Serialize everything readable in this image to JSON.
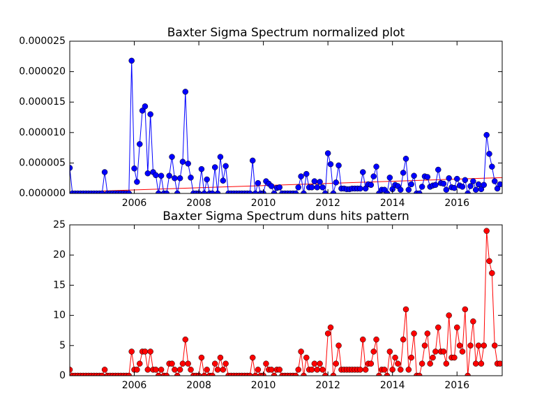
{
  "chart_data": [
    {
      "type": "line",
      "title": "Baxter Sigma Spectrum normalized plot",
      "x": [
        2004,
        2004.083,
        2004.167,
        2004.25,
        2004.333,
        2004.417,
        2004.5,
        2004.583,
        2004.667,
        2004.75,
        2004.833,
        2004.917,
        2005,
        2005.083,
        2005.167,
        2005.25,
        2005.333,
        2005.417,
        2005.5,
        2005.583,
        2005.667,
        2005.75,
        2005.833,
        2005.917,
        2006,
        2006.083,
        2006.167,
        2006.25,
        2006.333,
        2006.417,
        2006.5,
        2006.583,
        2006.667,
        2006.75,
        2006.833,
        2006.917,
        2007,
        2007.083,
        2007.167,
        2007.25,
        2007.333,
        2007.417,
        2007.5,
        2007.583,
        2007.667,
        2007.75,
        2007.833,
        2007.917,
        2008,
        2008.083,
        2008.167,
        2008.25,
        2008.333,
        2008.417,
        2008.5,
        2008.583,
        2008.667,
        2008.75,
        2008.833,
        2008.917,
        2009,
        2009.083,
        2009.167,
        2009.25,
        2009.333,
        2009.417,
        2009.5,
        2009.583,
        2009.667,
        2009.75,
        2009.833,
        2009.917,
        2010,
        2010.083,
        2010.167,
        2010.25,
        2010.333,
        2010.417,
        2010.5,
        2010.583,
        2010.667,
        2010.75,
        2010.833,
        2010.917,
        2011,
        2011.083,
        2011.167,
        2011.25,
        2011.333,
        2011.417,
        2011.5,
        2011.583,
        2011.667,
        2011.75,
        2011.833,
        2011.917,
        2012,
        2012.083,
        2012.167,
        2012.25,
        2012.333,
        2012.417,
        2012.5,
        2012.583,
        2012.667,
        2012.75,
        2012.833,
        2012.917,
        2013,
        2013.083,
        2013.167,
        2013.25,
        2013.333,
        2013.417,
        2013.5,
        2013.583,
        2013.667,
        2013.75,
        2013.833,
        2013.917,
        2014,
        2014.083,
        2014.167,
        2014.25,
        2014.333,
        2014.417,
        2014.5,
        2014.583,
        2014.667,
        2014.75,
        2014.833,
        2014.917,
        2015,
        2015.083,
        2015.167,
        2015.25,
        2015.333,
        2015.417,
        2015.5,
        2015.583,
        2015.667,
        2015.75,
        2015.833,
        2015.917,
        2016,
        2016.083,
        2016.167,
        2016.25,
        2016.333,
        2016.417,
        2016.5,
        2016.583,
        2016.667,
        2016.75,
        2016.833,
        2016.917,
        2017,
        2017.083,
        2017.167,
        2017.25,
        2017.333
      ],
      "series": [
        {
          "color": "#0000ff",
          "values": [
            4.2e-06,
            0,
            0,
            0,
            0,
            0,
            0,
            0,
            0,
            0,
            0,
            0,
            0,
            3.5e-06,
            0,
            0,
            0,
            0,
            0,
            0,
            0,
            0,
            0,
            2.18e-05,
            4.1e-06,
            1.9e-06,
            8.1e-06,
            1.36e-05,
            1.43e-05,
            3.3e-06,
            1.3e-05,
            3.5e-06,
            3e-06,
            0,
            2.9e-06,
            0,
            0,
            2.9e-06,
            6e-06,
            2.5e-06,
            0,
            2.5e-06,
            5.2e-06,
            1.67e-05,
            4.9e-06,
            2.6e-06,
            0,
            0,
            0,
            4e-06,
            0,
            2.3e-06,
            0,
            0,
            4.3e-06,
            0,
            6e-06,
            2.1e-06,
            4.5e-06,
            0,
            0,
            0,
            0,
            0,
            0,
            0,
            0,
            0,
            5.4e-06,
            0,
            1.7e-06,
            0,
            0,
            2e-06,
            1.6e-06,
            1.2e-06,
            0,
            9e-07,
            1e-06,
            0,
            0,
            0,
            0,
            0,
            0,
            1e-06,
            2.8e-06,
            0,
            3.2e-06,
            1e-06,
            1e-06,
            2e-06,
            1e-06,
            1.9e-06,
            1e-06,
            0,
            6.6e-06,
            4.8e-06,
            0,
            1.8e-06,
            4.6e-06,
            8e-07,
            8e-07,
            7e-07,
            7e-07,
            8e-07,
            8e-07,
            8e-07,
            8e-07,
            3.5e-06,
            8e-07,
            1.5e-06,
            1.4e-06,
            2.8e-06,
            4.4e-06,
            0,
            6e-07,
            6e-07,
            0,
            2.6e-06,
            7e-07,
            1.4e-06,
            1.2e-06,
            6e-07,
            3.4e-06,
            5.7e-06,
            6e-07,
            1.5e-06,
            2.9e-06,
            0,
            0,
            1.1e-06,
            2.8e-06,
            2.7e-06,
            1.1e-06,
            1.3e-06,
            1.4e-06,
            3.9e-06,
            1.7e-06,
            1.6e-06,
            6e-07,
            2.5e-06,
            1e-06,
            9e-07,
            2.4e-06,
            1.3e-06,
            1.1e-06,
            2.2e-06,
            0,
            1.2e-06,
            2e-06,
            6e-07,
            1.5e-06,
            7e-07,
            1.4e-06,
            9.6e-06,
            6.5e-06,
            4.4e-06,
            2e-06,
            8e-07,
            1.5e-06
          ]
        }
      ],
      "trend": {
        "color": "#ff0000",
        "x": [
          2004,
          2017.4
        ],
        "values": [
          2.3e-07,
          2.6e-06
        ]
      },
      "xlim": [
        2004,
        2017.4
      ],
      "xticks": [
        2006,
        2008,
        2010,
        2012,
        2014,
        2016
      ],
      "ylim": [
        0,
        2.5e-05
      ],
      "yticks": [
        {
          "value": 0,
          "label": "0.000000"
        },
        {
          "value": 5e-06,
          "label": "0.000005"
        },
        {
          "value": 1e-05,
          "label": "0.000010"
        },
        {
          "value": 1.5e-05,
          "label": "0.000015"
        },
        {
          "value": 2e-05,
          "label": "0.000020"
        },
        {
          "value": 2.5e-05,
          "label": "0.000025"
        }
      ]
    },
    {
      "type": "line",
      "title": "Baxter Sigma Spectrum duns hits pattern",
      "x": [
        2004,
        2004.083,
        2004.167,
        2004.25,
        2004.333,
        2004.417,
        2004.5,
        2004.583,
        2004.667,
        2004.75,
        2004.833,
        2004.917,
        2005,
        2005.083,
        2005.167,
        2005.25,
        2005.333,
        2005.417,
        2005.5,
        2005.583,
        2005.667,
        2005.75,
        2005.833,
        2005.917,
        2006,
        2006.083,
        2006.167,
        2006.25,
        2006.333,
        2006.417,
        2006.5,
        2006.583,
        2006.667,
        2006.75,
        2006.833,
        2006.917,
        2007,
        2007.083,
        2007.167,
        2007.25,
        2007.333,
        2007.417,
        2007.5,
        2007.583,
        2007.667,
        2007.75,
        2007.833,
        2007.917,
        2008,
        2008.083,
        2008.167,
        2008.25,
        2008.333,
        2008.417,
        2008.5,
        2008.583,
        2008.667,
        2008.75,
        2008.833,
        2008.917,
        2009,
        2009.083,
        2009.167,
        2009.25,
        2009.333,
        2009.417,
        2009.5,
        2009.583,
        2009.667,
        2009.75,
        2009.833,
        2009.917,
        2010,
        2010.083,
        2010.167,
        2010.25,
        2010.333,
        2010.417,
        2010.5,
        2010.583,
        2010.667,
        2010.75,
        2010.833,
        2010.917,
        2011,
        2011.083,
        2011.167,
        2011.25,
        2011.333,
        2011.417,
        2011.5,
        2011.583,
        2011.667,
        2011.75,
        2011.833,
        2011.917,
        2012,
        2012.083,
        2012.167,
        2012.25,
        2012.333,
        2012.417,
        2012.5,
        2012.583,
        2012.667,
        2012.75,
        2012.833,
        2012.917,
        2013,
        2013.083,
        2013.167,
        2013.25,
        2013.333,
        2013.417,
        2013.5,
        2013.583,
        2013.667,
        2013.75,
        2013.833,
        2013.917,
        2014,
        2014.083,
        2014.167,
        2014.25,
        2014.333,
        2014.417,
        2014.5,
        2014.583,
        2014.667,
        2014.75,
        2014.833,
        2014.917,
        2015,
        2015.083,
        2015.167,
        2015.25,
        2015.333,
        2015.417,
        2015.5,
        2015.583,
        2015.667,
        2015.75,
        2015.833,
        2015.917,
        2016,
        2016.083,
        2016.167,
        2016.25,
        2016.333,
        2016.417,
        2016.5,
        2016.583,
        2016.667,
        2016.75,
        2016.833,
        2016.917,
        2017,
        2017.083,
        2017.167,
        2017.25,
        2017.333
      ],
      "series": [
        {
          "color": "#ff0000",
          "values": [
            1,
            0,
            0,
            0,
            0,
            0,
            0,
            0,
            0,
            0,
            0,
            0,
            0,
            1,
            0,
            0,
            0,
            0,
            0,
            0,
            0,
            0,
            0,
            4,
            1,
            1,
            2,
            4,
            4,
            1,
            4,
            1,
            1,
            0,
            1,
            0,
            0,
            2,
            2,
            1,
            0,
            1,
            2,
            6,
            2,
            1,
            0,
            0,
            0,
            3,
            0,
            1,
            0,
            0,
            2,
            1,
            3,
            1,
            2,
            0,
            0,
            0,
            0,
            0,
            0,
            0,
            0,
            0,
            3,
            0,
            1,
            0,
            0,
            2,
            1,
            1,
            0,
            1,
            1,
            0,
            0,
            0,
            0,
            0,
            0,
            1,
            4,
            0,
            3,
            1,
            1,
            2,
            1,
            2,
            1,
            0,
            7,
            8,
            0,
            2,
            5,
            1,
            1,
            1,
            1,
            1,
            1,
            1,
            1,
            6,
            1,
            2,
            2,
            4,
            6,
            0,
            1,
            1,
            0,
            4,
            1,
            3,
            2,
            1,
            6,
            11,
            1,
            3,
            7,
            0,
            0,
            2,
            5,
            7,
            2,
            3,
            4,
            8,
            4,
            4,
            2,
            10,
            3,
            3,
            8,
            5,
            4,
            11,
            0,
            5,
            9,
            2,
            5,
            2,
            5,
            24,
            19,
            17,
            5,
            2,
            2
          ]
        }
      ],
      "xlim": [
        2004,
        2017.4
      ],
      "xticks": [
        2006,
        2008,
        2010,
        2012,
        2014,
        2016
      ],
      "ylim": [
        0,
        25
      ],
      "yticks": [
        0,
        5,
        10,
        15,
        20,
        25
      ]
    }
  ]
}
